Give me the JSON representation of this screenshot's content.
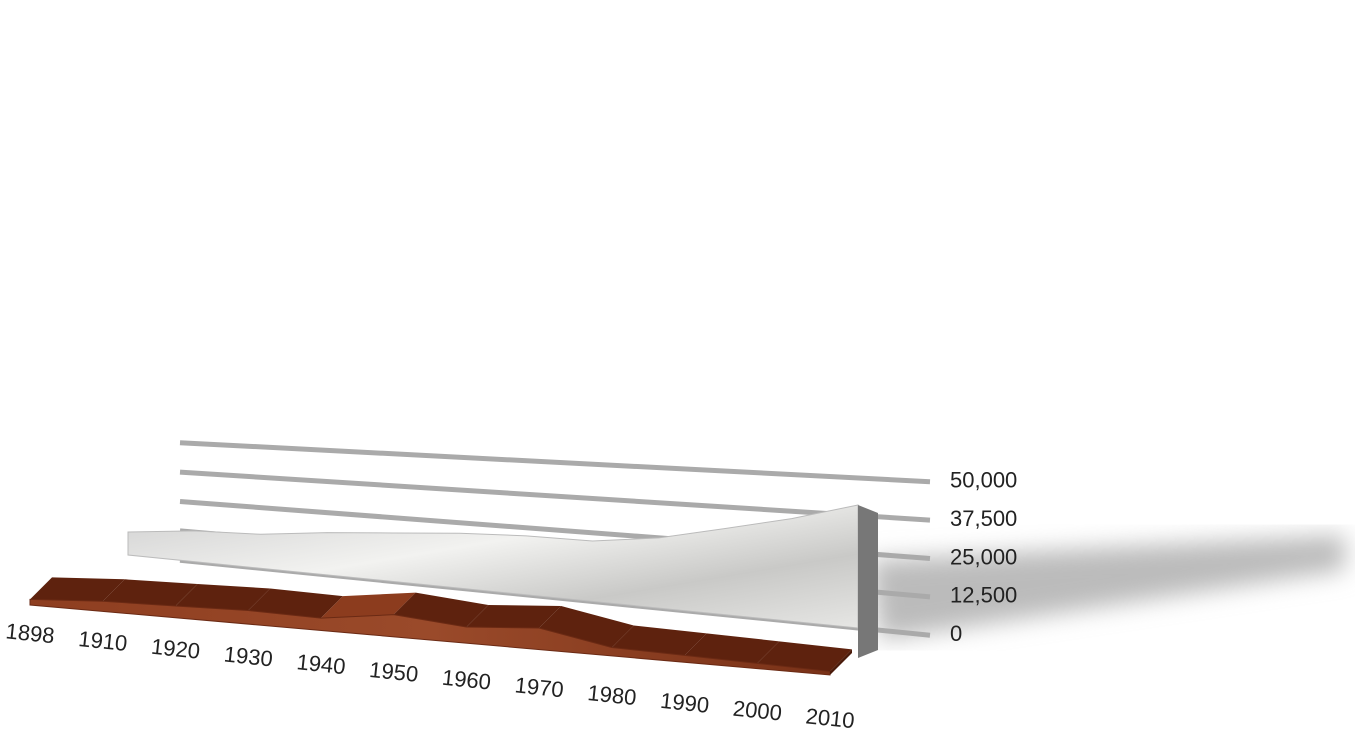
{
  "chart_data": {
    "type": "area3d",
    "categories": [
      "1898",
      "1910",
      "1920",
      "1930",
      "1940",
      "1950",
      "1960",
      "1970",
      "1980",
      "1990",
      "2000",
      "2010"
    ],
    "series": [
      {
        "color": "#d9d9d9",
        "values": [
          10000,
          13000,
          14000,
          17000,
          19000,
          21000,
          22000,
          22000,
          25000,
          30000,
          35000,
          41000
        ]
      },
      {
        "color": "#7a3218",
        "values": [
          2000,
          3500,
          4000,
          4500,
          4000,
          7000,
          5000,
          6500,
          2500,
          2000,
          1500,
          1000
        ]
      }
    ],
    "ylim": [
      0,
      50000
    ],
    "yticks": [
      0,
      {
        "value": 12500,
        "label": "12,500"
      },
      {
        "value": 25000,
        "label": "25,000"
      },
      {
        "value": 37500,
        "label": "37,500"
      },
      {
        "value": 50000,
        "label": "50,000"
      }
    ],
    "grid": true
  }
}
